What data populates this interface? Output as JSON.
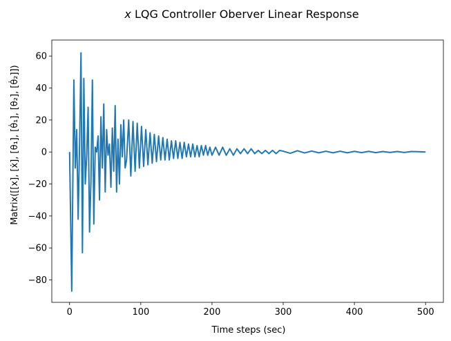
{
  "chart_data": {
    "type": "line",
    "title_var": "x",
    "title_rest": " LQG Controller Oberver Linear Response",
    "xlabel": "Time steps (sec)",
    "ylabel": "Matrix([[x], [ẋ], [θ₁], [θ̇₁], [θ₂], [θ̇₂]])",
    "xlim": [
      -25,
      525
    ],
    "ylim": [
      -94,
      70
    ],
    "xticks": [
      0,
      100,
      200,
      300,
      400,
      500
    ],
    "yticks": [
      -80,
      -60,
      -40,
      -20,
      0,
      20,
      40,
      60
    ],
    "xtick_labels": [
      "0",
      "100",
      "200",
      "300",
      "400",
      "500"
    ],
    "ytick_labels": [
      "−80",
      "−60",
      "−40",
      "−20",
      "0",
      "20",
      "40",
      "60"
    ],
    "grid": false,
    "series": [
      {
        "color": "#1f77b4",
        "x": [
          0,
          3,
          6,
          8,
          10,
          12,
          14,
          16,
          18,
          20,
          22,
          24,
          26,
          28,
          30,
          32,
          34,
          36,
          38,
          40,
          42,
          44,
          46,
          48,
          50,
          52,
          54,
          56,
          58,
          60,
          62,
          64,
          66,
          68,
          70,
          72,
          74,
          76,
          78,
          80,
          83,
          86,
          89,
          92,
          95,
          98,
          101,
          104,
          107,
          110,
          113,
          116,
          119,
          122,
          125,
          128,
          131,
          134,
          137,
          140,
          143,
          146,
          149,
          152,
          155,
          158,
          161,
          164,
          167,
          170,
          173,
          176,
          179,
          182,
          185,
          188,
          191,
          194,
          197,
          200,
          205,
          210,
          215,
          220,
          225,
          230,
          235,
          240,
          245,
          250,
          255,
          260,
          265,
          270,
          275,
          280,
          285,
          290,
          295,
          300,
          310,
          320,
          330,
          340,
          350,
          360,
          370,
          380,
          390,
          400,
          410,
          420,
          430,
          440,
          450,
          460,
          470,
          480,
          490,
          500
        ],
        "y": [
          0,
          -87,
          45,
          -10,
          14,
          -42,
          5,
          62,
          -63,
          46,
          -20,
          -3,
          28,
          -50,
          -18,
          45,
          -45,
          3,
          0,
          10,
          -30,
          22,
          -10,
          30,
          -25,
          14,
          -2,
          5,
          -22,
          15,
          -12,
          29,
          -25,
          8,
          -20,
          17,
          -3,
          20,
          -10,
          -5,
          20,
          -15,
          19,
          -12,
          18,
          -10,
          16,
          -9,
          14,
          -8,
          12,
          -7,
          11,
          -6,
          10,
          -5,
          9,
          -5,
          8,
          -5,
          7,
          -4,
          7,
          -4,
          6,
          -4,
          6,
          -3,
          5,
          -3,
          5,
          -3,
          4,
          -3,
          4,
          -2,
          4,
          -2,
          3,
          -2,
          3,
          -2,
          3,
          -2,
          2,
          -2,
          2,
          -1,
          2,
          -1,
          2,
          -1,
          1,
          -1,
          1,
          -1,
          1,
          -1,
          1,
          0.5,
          -0.8,
          0.8,
          -0.6,
          0.6,
          -0.5,
          0.5,
          -0.5,
          0.5,
          -0.5,
          0.4,
          -0.4,
          0.4,
          -0.4,
          0.3,
          -0.3,
          0.3,
          -0.3,
          0.3,
          0.2,
          0
        ]
      }
    ]
  }
}
